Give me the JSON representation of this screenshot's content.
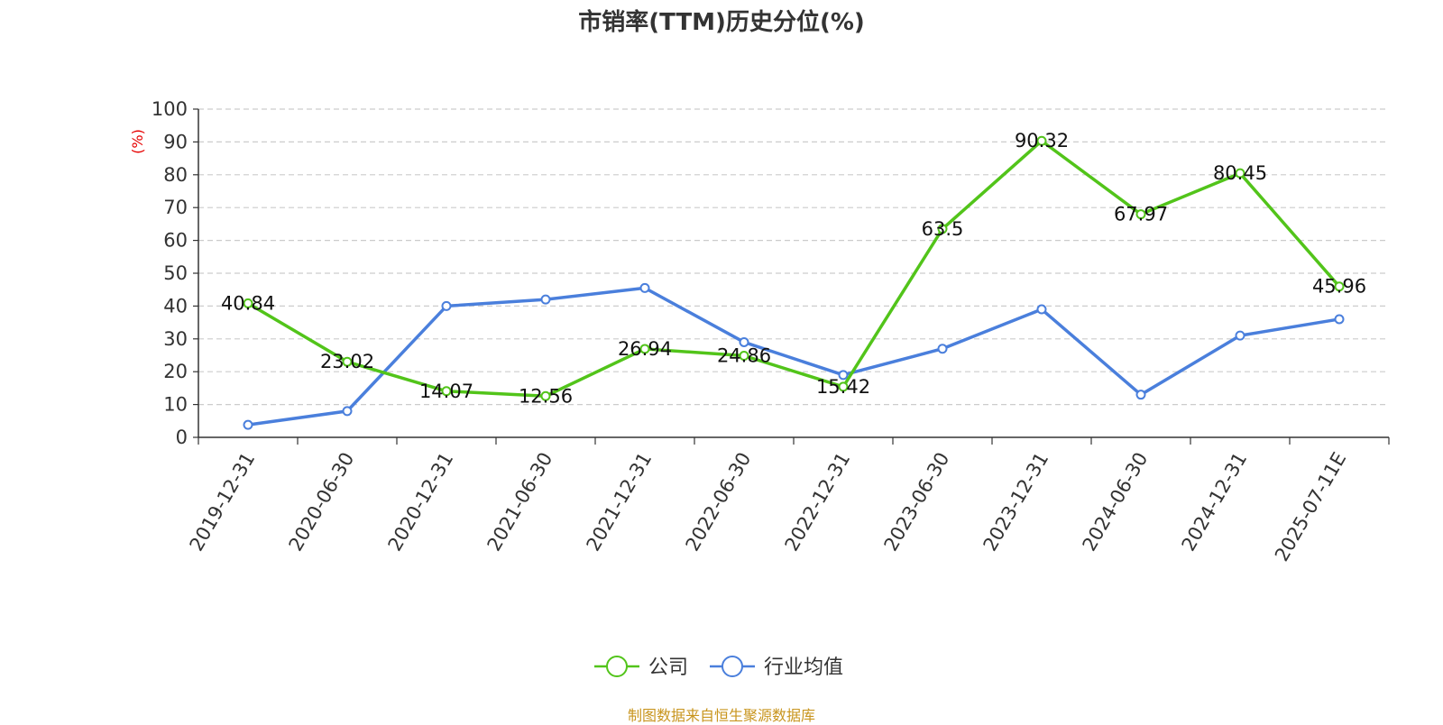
{
  "title": "市销率(TTM)历史分位(%)",
  "source": "制图数据来自恒生聚源数据库",
  "chart_data": {
    "type": "line",
    "title": "市销率(TTM)历史分位(%)",
    "ylabel": "(%)",
    "ylim": [
      0,
      100
    ],
    "yticks": [
      0,
      10,
      20,
      30,
      40,
      50,
      60,
      70,
      80,
      90,
      100
    ],
    "grid": true,
    "legend_position": "bottom",
    "categories": [
      "2019-12-31",
      "2020-06-30",
      "2020-12-31",
      "2021-06-30",
      "2021-12-31",
      "2022-06-30",
      "2022-12-31",
      "2023-06-30",
      "2023-12-31",
      "2024-06-30",
      "2024-12-31",
      "2025-07-11E"
    ],
    "series": [
      {
        "name": "公司",
        "color": "#52c41a",
        "show_labels": true,
        "values": [
          40.84,
          23.02,
          14.07,
          12.56,
          26.94,
          24.86,
          15.42,
          63.5,
          90.32,
          67.97,
          80.45,
          45.96
        ],
        "labels": [
          "40.84",
          "23.02",
          "14.07",
          "12.56",
          "26.94",
          "24.86",
          "15.42",
          "63.5",
          "90.32",
          "67.97",
          "80.45",
          "45.96"
        ]
      },
      {
        "name": "行业均值",
        "color": "#4a7fdc",
        "show_labels": false,
        "values": [
          3.8,
          8,
          40,
          42,
          45.5,
          29,
          19,
          27,
          39,
          13,
          31,
          36
        ]
      }
    ]
  }
}
